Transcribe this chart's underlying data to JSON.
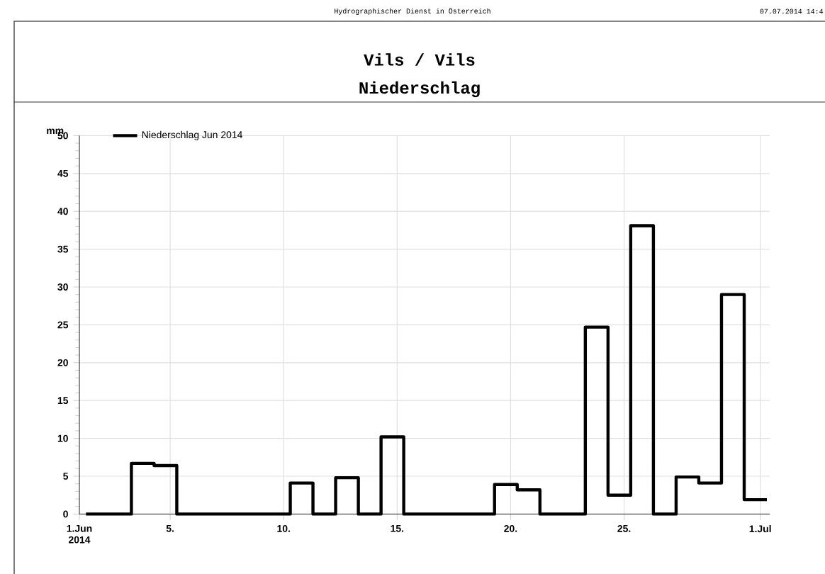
{
  "chart_data": {
    "type": "step",
    "title": "Vils / Vils",
    "subtitle": "Niederschlag",
    "ylabel": "mm",
    "annotations": [
      "Hydrographischer Dienst in Österreich",
      "07.07.2014 14:4"
    ],
    "x": [
      "2014-06-01T07:00",
      "2014-06-02T07:00",
      "2014-06-03T07:00",
      "2014-06-04T07:00",
      "2014-06-05T07:00",
      "2014-06-06T07:00",
      "2014-06-07T07:00",
      "2014-06-08T07:00",
      "2014-06-09T07:00",
      "2014-06-10T07:00",
      "2014-06-11T07:00",
      "2014-06-12T07:00",
      "2014-06-13T07:00",
      "2014-06-14T07:00",
      "2014-06-15T07:00",
      "2014-06-16T07:00",
      "2014-06-17T07:00",
      "2014-06-18T07:00",
      "2014-06-19T07:00",
      "2014-06-20T07:00",
      "2014-06-21T07:00",
      "2014-06-22T07:00",
      "2014-06-23T07:00",
      "2014-06-24T07:00",
      "2014-06-25T07:00",
      "2014-06-26T07:00",
      "2014-06-27T07:00",
      "2014-06-28T07:00",
      "2014-06-29T07:00",
      "2014-06-30T07:00",
      "2014-07-01T07:00"
    ],
    "series": [
      {
        "name": "Niederschlag Jun 2014",
        "color": "#000000",
        "values": [
          0,
          0,
          6.7,
          6.4,
          0,
          0,
          0,
          0,
          0,
          4.1,
          0,
          4.8,
          0,
          10.2,
          0,
          0,
          0,
          0,
          3.9,
          3.2,
          0,
          0,
          24.7,
          2.5,
          38.1,
          0,
          4.9,
          4.1,
          29.0,
          1.9,
          1.9
        ]
      }
    ],
    "xlim": [
      "2014-06-01T00:00",
      "2014-07-01T10:00"
    ],
    "xticks": [
      {
        "value": "2014-06-01",
        "label": "1.Jun 2014"
      },
      {
        "value": "2014-06-05",
        "label": "5."
      },
      {
        "value": "2014-06-10",
        "label": "10."
      },
      {
        "value": "2014-06-15",
        "label": "15."
      },
      {
        "value": "2014-06-20",
        "label": "20."
      },
      {
        "value": "2014-06-25",
        "label": "25."
      },
      {
        "value": "2014-07-01",
        "label": "1.Jul"
      }
    ],
    "ylim": [
      0,
      50
    ],
    "yticks": [
      0,
      5,
      10,
      15,
      20,
      25,
      30,
      35,
      40,
      45,
      50
    ],
    "grid": true,
    "legend": "top left"
  }
}
